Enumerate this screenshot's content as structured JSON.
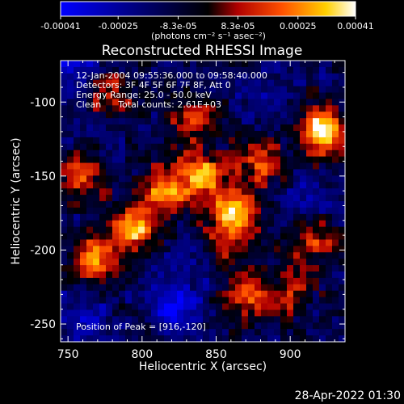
{
  "chart_data": {
    "type": "heatmap",
    "title": "Reconstructed RHESSI Image",
    "xlabel": "Heliocentric X (arcsec)",
    "ylabel": "Heliocentric Y (arcsec)",
    "xlim": [
      745,
      937
    ],
    "ylim": [
      -262,
      -72
    ],
    "xticks": [
      750,
      800,
      850,
      900
    ],
    "yticks": [
      -100,
      -150,
      -200,
      -250
    ],
    "colorbar": {
      "min": -0.00041,
      "max": 0.00041,
      "tick_labels": [
        "-0.00041",
        "-0.00025",
        "-8.3e-05",
        "8.3e-05",
        "0.00025",
        "0.00041"
      ],
      "tick_values": [
        -0.00041,
        -0.00025,
        -8.3e-05,
        8.3e-05,
        0.00025,
        0.00041
      ],
      "unit_label": "(photons cm⁻² s⁻¹ asec⁻²)",
      "colors": [
        "#0000ff",
        "#000000",
        "#b00000",
        "#ff5000",
        "#ffd000",
        "#ffffff"
      ]
    },
    "annotations": [
      "12-Jan-2004 09:55:36.000 to 09:58:40.000",
      "Detectors: 3F 4F 5F 6F 7F 8F, Att 0",
      "Energy Range: 25.0 - 50.0 keV",
      "Clean      Total counts: 2.61E+03"
    ],
    "peak_label": "Position of Peak = [916,-120]",
    "peak": [
      916,
      -120
    ],
    "hotspots": [
      {
        "x": 922,
        "y": -120,
        "amp": 1.0
      },
      {
        "x": 862,
        "y": -175,
        "amp": 0.9
      },
      {
        "x": 840,
        "y": -150,
        "amp": 0.75
      },
      {
        "x": 795,
        "y": -185,
        "amp": 0.75
      },
      {
        "x": 770,
        "y": -205,
        "amp": 0.7
      },
      {
        "x": 815,
        "y": -160,
        "amp": 0.65
      },
      {
        "x": 880,
        "y": -140,
        "amp": 0.55
      },
      {
        "x": 760,
        "y": -150,
        "amp": 0.5
      },
      {
        "x": 835,
        "y": -110,
        "amp": 0.55
      },
      {
        "x": 870,
        "y": -230,
        "amp": 0.55
      },
      {
        "x": 915,
        "y": -195,
        "amp": 0.45
      },
      {
        "x": 780,
        "y": -95,
        "amp": 0.45
      },
      {
        "x": 900,
        "y": -230,
        "amp": 0.4
      },
      {
        "x": 850,
        "y": -200,
        "amp": 0.4
      }
    ],
    "coldspots": [
      {
        "x": 822,
        "y": -238,
        "amp": 0.8
      },
      {
        "x": 840,
        "y": -210,
        "amp": 0.5
      },
      {
        "x": 755,
        "y": -80,
        "amp": 0.5
      },
      {
        "x": 910,
        "y": -165,
        "amp": 0.45
      },
      {
        "x": 760,
        "y": -245,
        "amp": 0.45
      },
      {
        "x": 880,
        "y": -100,
        "amp": 0.4
      }
    ]
  },
  "footer": {
    "timestamp": "28-Apr-2022 01:30"
  }
}
